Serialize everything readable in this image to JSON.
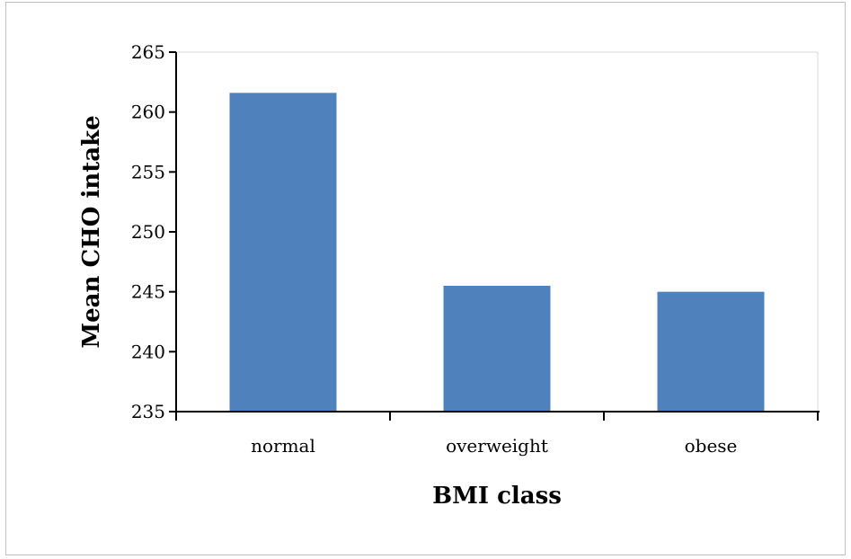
{
  "chart_data": {
    "type": "bar",
    "title": "",
    "xlabel": "BMI class",
    "ylabel": "Mean CHO intake",
    "categories": [
      "normal",
      "overweight",
      "obese"
    ],
    "values": [
      261.6,
      245.5,
      245.0
    ],
    "ylim": [
      235,
      265
    ],
    "yticks": [
      "235",
      "240",
      "245",
      "250",
      "255",
      "260",
      "265"
    ],
    "grid": false,
    "legend": "none",
    "bar_color": "#4f81bd"
  }
}
